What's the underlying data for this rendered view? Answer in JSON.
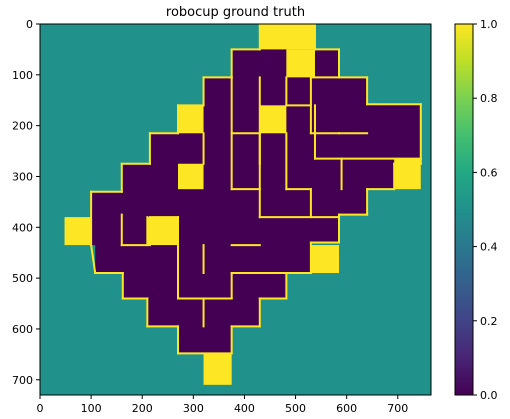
{
  "chart_data": {
    "type": "heatmap",
    "title": "robocup ground truth",
    "x_ticks": [
      0,
      100,
      200,
      300,
      400,
      500,
      600,
      700
    ],
    "y_ticks": [
      0,
      100,
      200,
      300,
      400,
      500,
      600,
      700
    ],
    "xlim": [
      0,
      765
    ],
    "ylim": [
      730,
      0
    ],
    "colormap": "viridis",
    "colorbar_ticks": [
      "0.0",
      "0.2",
      "0.4",
      "0.6",
      "0.8",
      "1.0"
    ],
    "colorbar_range": [
      0,
      1
    ],
    "background_value": 0.5,
    "colors": {
      "background": "#21918c",
      "floor": "#440154",
      "wall": "#fde725"
    },
    "floor_polygon": [
      [
        270,
        0
      ],
      [
        538,
        0
      ],
      [
        538,
        50
      ],
      [
        585,
        50
      ],
      [
        585,
        105
      ],
      [
        640,
        105
      ],
      [
        640,
        158
      ],
      [
        745,
        158
      ],
      [
        745,
        275
      ],
      [
        693,
        275
      ],
      [
        693,
        325
      ],
      [
        640,
        325
      ],
      [
        640,
        375
      ],
      [
        585,
        375
      ],
      [
        585,
        430
      ],
      [
        530,
        430
      ],
      [
        530,
        490
      ],
      [
        482,
        490
      ],
      [
        482,
        540
      ],
      [
        430,
        540
      ],
      [
        430,
        595
      ],
      [
        375,
        595
      ],
      [
        375,
        648
      ],
      [
        270,
        648
      ],
      [
        270,
        595
      ],
      [
        210,
        595
      ],
      [
        210,
        540
      ],
      [
        162,
        540
      ],
      [
        162,
        490
      ],
      [
        108,
        490
      ],
      [
        108,
        435
      ],
      [
        100,
        435
      ],
      [
        100,
        375
      ],
      [
        100,
        330
      ],
      [
        160,
        330
      ],
      [
        160,
        275
      ],
      [
        215,
        275
      ],
      [
        215,
        215
      ],
      [
        270,
        215
      ],
      [
        270,
        160
      ],
      [
        320,
        160
      ],
      [
        320,
        105
      ],
      [
        375,
        105
      ],
      [
        375,
        50
      ],
      [
        430,
        50
      ],
      [
        430,
        0
      ]
    ],
    "walls_shifted_note": "",
    "wall_segments": [
      [
        [
          430,
          0
        ],
        [
          538,
          0
        ]
      ],
      [
        [
          538,
          0
        ],
        [
          538,
          50
        ]
      ],
      [
        [
          538,
          50
        ],
        [
          585,
          50
        ]
      ],
      [
        [
          585,
          50
        ],
        [
          585,
          105
        ]
      ],
      [
        [
          585,
          105
        ],
        [
          640,
          105
        ]
      ],
      [
        [
          640,
          105
        ],
        [
          640,
          158
        ]
      ],
      [
        [
          640,
          158
        ],
        [
          745,
          158
        ]
      ],
      [
        [
          745,
          158
        ],
        [
          745,
          275
        ]
      ],
      [
        [
          745,
          275
        ],
        [
          693,
          275
        ]
      ],
      [
        [
          693,
          275
        ],
        [
          693,
          325
        ]
      ],
      [
        [
          693,
          325
        ],
        [
          640,
          325
        ]
      ],
      [
        [
          640,
          325
        ],
        [
          640,
          375
        ]
      ],
      [
        [
          640,
          375
        ],
        [
          585,
          375
        ]
      ],
      [
        [
          585,
          375
        ],
        [
          585,
          430
        ]
      ],
      [
        [
          585,
          430
        ],
        [
          530,
          430
        ]
      ],
      [
        [
          530,
          430
        ],
        [
          530,
          490
        ]
      ],
      [
        [
          530,
          490
        ],
        [
          482,
          490
        ]
      ],
      [
        [
          482,
          490
        ],
        [
          482,
          540
        ]
      ],
      [
        [
          482,
          540
        ],
        [
          430,
          540
        ]
      ],
      [
        [
          430,
          540
        ],
        [
          430,
          595
        ]
      ],
      [
        [
          430,
          595
        ],
        [
          375,
          595
        ]
      ],
      [
        [
          375,
          595
        ],
        [
          375,
          648
        ]
      ],
      [
        [
          375,
          648
        ],
        [
          270,
          648
        ]
      ],
      [
        [
          270,
          648
        ],
        [
          270,
          595
        ]
      ],
      [
        [
          270,
          595
        ],
        [
          210,
          595
        ]
      ],
      [
        [
          210,
          595
        ],
        [
          210,
          540
        ]
      ],
      [
        [
          210,
          540
        ],
        [
          162,
          540
        ]
      ],
      [
        [
          162,
          540
        ],
        [
          162,
          490
        ]
      ],
      [
        [
          162,
          490
        ],
        [
          108,
          490
        ]
      ],
      [
        [
          108,
          490
        ],
        [
          100,
          435
        ]
      ],
      [
        [
          100,
          435
        ],
        [
          100,
          330
        ]
      ],
      [
        [
          100,
          330
        ],
        [
          160,
          330
        ]
      ],
      [
        [
          160,
          330
        ],
        [
          160,
          275
        ]
      ],
      [
        [
          160,
          275
        ],
        [
          215,
          275
        ]
      ],
      [
        [
          215,
          275
        ],
        [
          215,
          215
        ]
      ],
      [
        [
          215,
          215
        ],
        [
          270,
          215
        ]
      ],
      [
        [
          270,
          215
        ],
        [
          270,
          160
        ]
      ],
      [
        [
          270,
          160
        ],
        [
          320,
          160
        ]
      ],
      [
        [
          320,
          160
        ],
        [
          320,
          105
        ]
      ],
      [
        [
          320,
          105
        ],
        [
          375,
          105
        ]
      ],
      [
        [
          375,
          105
        ],
        [
          375,
          50
        ]
      ],
      [
        [
          375,
          50
        ],
        [
          430,
          50
        ]
      ],
      [
        [
          430,
          50
        ],
        [
          430,
          0
        ]
      ],
      [
        [
          375,
          105
        ],
        [
          375,
          215
        ]
      ],
      [
        [
          375,
          215
        ],
        [
          430,
          215
        ]
      ],
      [
        [
          430,
          105
        ],
        [
          430,
          275
        ]
      ],
      [
        [
          482,
          105
        ],
        [
          482,
          160
        ]
      ],
      [
        [
          482,
          160
        ],
        [
          530,
          160
        ]
      ],
      [
        [
          530,
          105
        ],
        [
          585,
          105
        ]
      ],
      [
        [
          530,
          105
        ],
        [
          530,
          215
        ]
      ],
      [
        [
          530,
          215
        ],
        [
          585,
          215
        ]
      ],
      [
        [
          585,
          215
        ],
        [
          640,
          215
        ]
      ],
      [
        [
          538,
          160
        ],
        [
          538,
          265
        ]
      ],
      [
        [
          538,
          265
        ],
        [
          745,
          265
        ]
      ],
      [
        [
          590,
          265
        ],
        [
          590,
          325
        ]
      ],
      [
        [
          430,
          215
        ],
        [
          430,
          380
        ]
      ],
      [
        [
          482,
          215
        ],
        [
          482,
          325
        ]
      ],
      [
        [
          482,
          325
        ],
        [
          530,
          325
        ]
      ],
      [
        [
          530,
          325
        ],
        [
          530,
          380
        ]
      ],
      [
        [
          430,
          380
        ],
        [
          585,
          380
        ]
      ],
      [
        [
          375,
          215
        ],
        [
          375,
          325
        ]
      ],
      [
        [
          375,
          325
        ],
        [
          430,
          325
        ]
      ],
      [
        [
          320,
          215
        ],
        [
          320,
          275
        ]
      ],
      [
        [
          160,
          375
        ],
        [
          160,
          435
        ]
      ],
      [
        [
          160,
          435
        ],
        [
          215,
          435
        ]
      ],
      [
        [
          210,
          380
        ],
        [
          210,
          435
        ]
      ],
      [
        [
          270,
          380
        ],
        [
          270,
          540
        ]
      ],
      [
        [
          270,
          540
        ],
        [
          375,
          540
        ]
      ],
      [
        [
          375,
          490
        ],
        [
          482,
          490
        ]
      ],
      [
        [
          375,
          490
        ],
        [
          375,
          540
        ]
      ],
      [
        [
          320,
          435
        ],
        [
          320,
          490
        ]
      ],
      [
        [
          375,
          435
        ],
        [
          430,
          435
        ]
      ],
      [
        [
          320,
          540
        ],
        [
          320,
          595
        ]
      ],
      [
        [
          215,
          380
        ],
        [
          270,
          380
        ]
      ],
      [
        [
          270,
          380
        ],
        [
          270,
          435
        ]
      ]
    ],
    "yellow_blocks": [
      [
        430,
        0,
        538,
        50
      ],
      [
        482,
        50,
        538,
        105
      ],
      [
        270,
        160,
        320,
        215
      ],
      [
        430,
        160,
        482,
        215
      ],
      [
        270,
        275,
        320,
        325
      ],
      [
        693,
        265,
        745,
        325
      ],
      [
        48,
        380,
        100,
        435
      ],
      [
        210,
        380,
        270,
        435
      ],
      [
        530,
        435,
        585,
        490
      ],
      [
        320,
        648,
        375,
        710
      ]
    ]
  }
}
